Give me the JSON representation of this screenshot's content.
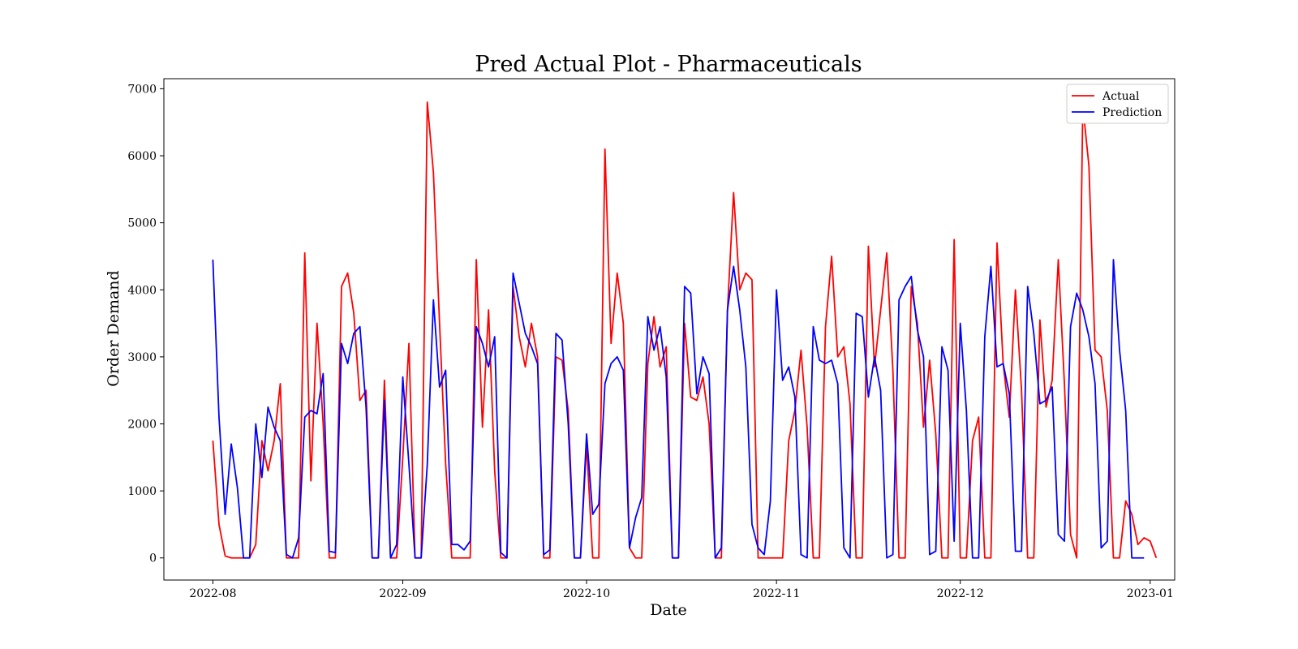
{
  "chart_data": {
    "type": "line",
    "title": "Pred Actual Plot - Pharmaceuticals",
    "xlabel": "Date",
    "ylabel": "Order Demand",
    "xlim": [
      "2022-07-24",
      "2023-01-05"
    ],
    "ylim": [
      -330,
      7150
    ],
    "x_ticks": [
      "2022-08-01",
      "2022-09-01",
      "2022-10-01",
      "2022-11-01",
      "2022-12-01",
      "2023-01-01"
    ],
    "x_tick_labels": [
      "2022-08",
      "2022-09",
      "2022-10",
      "2022-11",
      "2022-12",
      "2023-01"
    ],
    "y_ticks": [
      0,
      1000,
      2000,
      3000,
      4000,
      5000,
      6000,
      7000
    ],
    "y_tick_labels": [
      "0",
      "1000",
      "2000",
      "3000",
      "4000",
      "5000",
      "6000",
      "7000"
    ],
    "grid": false,
    "legend_position": "top-right",
    "x_start": "2022-08-01",
    "x_step_days": 1,
    "series": [
      {
        "name": "Actual",
        "color": "#ff0000",
        "values": [
          1750,
          500,
          30,
          0,
          0,
          0,
          0,
          200,
          1750,
          1300,
          1750,
          2600,
          0,
          0,
          0,
          4550,
          1150,
          3500,
          2000,
          0,
          0,
          4050,
          4250,
          3650,
          2350,
          2500,
          0,
          0,
          2650,
          0,
          0,
          1500,
          3200,
          0,
          0,
          6800,
          5750,
          3500,
          1400,
          0,
          0,
          0,
          0,
          4450,
          1950,
          3700,
          1300,
          0,
          0,
          4050,
          3300,
          2850,
          3500,
          3000,
          0,
          0,
          3000,
          2950,
          2200,
          0,
          0,
          1700,
          0,
          0,
          6100,
          3200,
          4250,
          3500,
          150,
          0,
          0,
          2900,
          3600,
          2850,
          3150,
          0,
          0,
          3500,
          2400,
          2350,
          2700,
          2000,
          0,
          0,
          3700,
          5450,
          4000,
          4250,
          4150,
          0,
          0,
          0,
          0,
          0,
          1750,
          2200,
          3100,
          1950,
          0,
          0,
          3450,
          4500,
          3000,
          3150,
          2300,
          0,
          0,
          4650,
          2850,
          3700,
          4550,
          2800,
          0,
          0,
          4050,
          3500,
          1950,
          2950,
          1850,
          0,
          0,
          4750,
          0,
          0,
          1750,
          2100,
          0,
          0,
          4700,
          2900,
          2100,
          4000,
          2500,
          0,
          0,
          3550,
          2250,
          2650,
          4450,
          2600,
          350,
          0,
          6750,
          5850,
          3100,
          3000,
          2200,
          0,
          0,
          850,
          650,
          200,
          300,
          250,
          0
        ]
      },
      {
        "name": "Prediction",
        "color": "#0000ff",
        "values": [
          4450,
          2100,
          650,
          1700,
          1050,
          0,
          0,
          2000,
          1200,
          2250,
          1950,
          1750,
          50,
          0,
          300,
          2100,
          2200,
          2150,
          2750,
          100,
          80,
          3200,
          2900,
          3350,
          3450,
          2250,
          0,
          0,
          2350,
          0,
          200,
          2700,
          1400,
          0,
          0,
          1400,
          3850,
          2550,
          2800,
          200,
          200,
          120,
          250,
          3450,
          3200,
          2850,
          3300,
          80,
          0,
          4250,
          3800,
          3350,
          3150,
          2900,
          50,
          120,
          3350,
          3250,
          2000,
          0,
          0,
          1850,
          650,
          800,
          2600,
          2900,
          3000,
          2800,
          150,
          600,
          900,
          3600,
          3100,
          3450,
          2700,
          0,
          0,
          4050,
          3950,
          2450,
          3000,
          2750,
          0,
          150,
          3700,
          4350,
          3700,
          2850,
          500,
          150,
          50,
          850,
          4000,
          2650,
          2850,
          2400,
          50,
          0,
          3450,
          2950,
          2900,
          2950,
          2600,
          150,
          0,
          3650,
          3600,
          2400,
          3000,
          2500,
          0,
          50,
          3850,
          4050,
          4200,
          3400,
          3000,
          50,
          100,
          3150,
          2800,
          250,
          3500,
          2200,
          0,
          0,
          3300,
          4350,
          2850,
          2900,
          2450,
          100,
          100,
          4050,
          3350,
          2300,
          2350,
          2550,
          350,
          250,
          3450,
          3950,
          3700,
          3300,
          2600,
          150,
          250,
          4450,
          3100,
          2200,
          0,
          0,
          0
        ]
      }
    ]
  }
}
